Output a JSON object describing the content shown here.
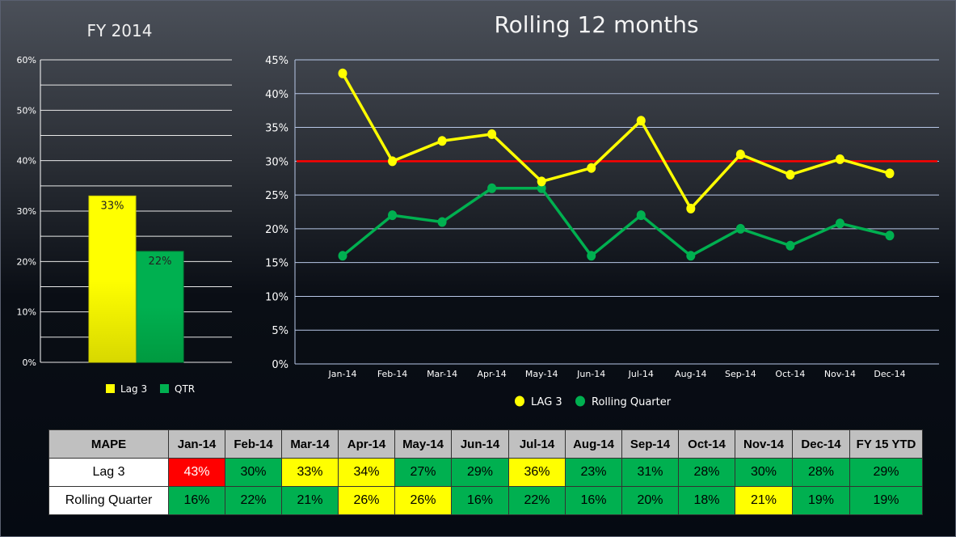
{
  "colors": {
    "lag3": "#ffff00",
    "rolling": "#00b050",
    "target": "#ff0000",
    "bad": "#ff0000",
    "warn": "#ffff00",
    "good": "#00b050"
  },
  "chart_data": [
    {
      "type": "bar",
      "title": "FY 2014",
      "categories": [
        "Lag 3",
        "QTR"
      ],
      "values": [
        33,
        22
      ],
      "data_labels": [
        "33%",
        "22%"
      ],
      "ylim": [
        0,
        60
      ],
      "yticks": [
        "0%",
        "10%",
        "20%",
        "30%",
        "40%",
        "50%",
        "60%"
      ],
      "legend": [
        "Lag 3",
        "QTR"
      ],
      "legend_position": "bottom",
      "grid": true
    },
    {
      "type": "line",
      "title": "Rolling 12 months",
      "categories": [
        "Jan-14",
        "Feb-14",
        "Mar-14",
        "Apr-14",
        "May-14",
        "Jun-14",
        "Jul-14",
        "Aug-14",
        "Sep-14",
        "Oct-14",
        "Nov-14",
        "Dec-14"
      ],
      "series": [
        {
          "name": "LAG 3",
          "values": [
            43,
            30,
            33,
            34,
            27,
            29,
            36,
            23,
            31,
            28,
            30.3,
            28.2
          ]
        },
        {
          "name": "Rolling Quarter",
          "values": [
            16,
            22,
            21,
            26,
            26,
            16,
            22,
            16,
            20,
            17.5,
            20.8,
            19
          ]
        }
      ],
      "target_line": 30,
      "ylim": [
        0,
        45
      ],
      "yticks": [
        "0%",
        "5%",
        "10%",
        "15%",
        "20%",
        "25%",
        "30%",
        "35%",
        "40%",
        "45%"
      ],
      "legend_position": "bottom",
      "grid": true
    }
  ],
  "table": {
    "headers": [
      "MAPE",
      "Jan-14",
      "Feb-14",
      "Mar-14",
      "Apr-14",
      "May-14",
      "Jun-14",
      "Jul-14",
      "Aug-14",
      "Sep-14",
      "Oct-14",
      "Nov-14",
      "Dec-14",
      "FY 15 YTD"
    ],
    "rows": [
      {
        "label": "Lag 3",
        "values": [
          "43%",
          "30%",
          "33%",
          "34%",
          "27%",
          "29%",
          "36%",
          "23%",
          "31%",
          "28%",
          "30%",
          "28%",
          "29%"
        ],
        "status": [
          "bad",
          "good",
          "warn",
          "warn",
          "good",
          "good",
          "warn",
          "good",
          "good",
          "good",
          "good",
          "good",
          "good"
        ]
      },
      {
        "label": "Rolling Quarter",
        "values": [
          "16%",
          "22%",
          "21%",
          "26%",
          "26%",
          "16%",
          "22%",
          "16%",
          "20%",
          "18%",
          "21%",
          "19%",
          "19%"
        ],
        "status": [
          "good",
          "good",
          "good",
          "warn",
          "warn",
          "good",
          "good",
          "good",
          "good",
          "good",
          "warn",
          "good",
          "good"
        ]
      }
    ]
  }
}
